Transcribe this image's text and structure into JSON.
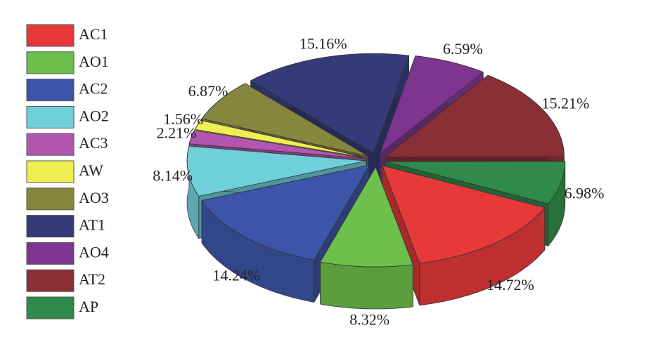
{
  "chart_data": {
    "type": "pie",
    "categories": [
      "AC1",
      "AO1",
      "AC2",
      "AO2",
      "AC3",
      "AW",
      "AO3",
      "AT1",
      "AO4",
      "AT2",
      "AP"
    ],
    "values": [
      14.72,
      8.32,
      14.24,
      8.14,
      2.21,
      1.56,
      6.87,
      15.16,
      6.59,
      15.21,
      6.98
    ],
    "value_labels": [
      "14.72%",
      "8.32%",
      "14.24%",
      "8.14%",
      "2.21%",
      "1.56%",
      "6.87%",
      "15.16%",
      "6.59%",
      "15.21%",
      "6.98%"
    ],
    "colors": [
      "#e8393a",
      "#6cc04b",
      "#3d55a8",
      "#6fcfda",
      "#b356b0",
      "#f0ee52",
      "#86863f",
      "#353a78",
      "#7d358f",
      "#8a2f35",
      "#2f8a4b"
    ],
    "legend": "left"
  }
}
